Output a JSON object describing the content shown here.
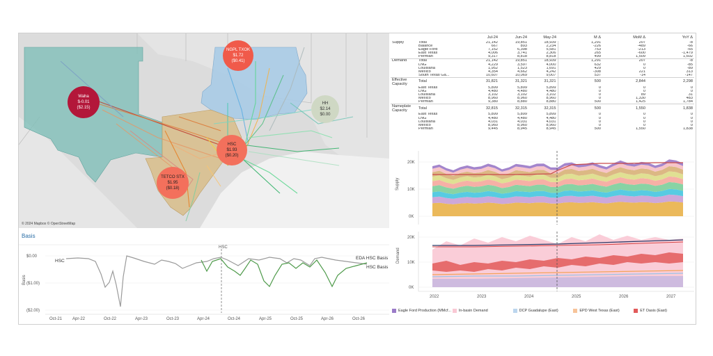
{
  "map": {
    "credit": "© 2024 Mapbox © OpenStreetMap",
    "hubs": [
      {
        "name": "NGPL TXOK",
        "price": "$1.72",
        "basis": "($0.41)",
        "color": "#f05a4a"
      },
      {
        "name": "Waha",
        "price": "$-0.01",
        "basis": "($2.15)",
        "color": "#b3173a"
      },
      {
        "name": "HH",
        "price": "$2.14",
        "basis": "$0.00",
        "color": "#cfd8c4"
      },
      {
        "name": "HSC",
        "price": "$1.93",
        "basis": "($0.20)",
        "color": "#f3705c"
      },
      {
        "name": "TETCO STX",
        "price": "$1.95",
        "basis": "($0.18)",
        "color": "#f3705c"
      }
    ]
  },
  "basis": {
    "title": "Basis",
    "marker_label": "HSC",
    "left_label": "HSC",
    "series_labels": [
      "EDA HSC Basis",
      "HSC Basis"
    ],
    "y_label": "Basis",
    "y_ticks": [
      "$0.00",
      "($1.00)",
      "($2.00)"
    ],
    "x_ticks": [
      "Oct-21",
      "Apr-22",
      "Oct-22",
      "Apr-23",
      "Oct-23",
      "Apr-24",
      "Oct-24",
      "Apr-25",
      "Oct-25",
      "Apr-26",
      "Oct-26"
    ],
    "colors": {
      "hsc": "#9a9a9a",
      "eda": "#4e9a4a"
    }
  },
  "table": {
    "headers": [
      "Jul-24",
      "Jun-24",
      "May-24",
      "M Δ",
      "MoM Δ",
      "YoY Δ"
    ],
    "groups": [
      {
        "name": "Supply",
        "rows": [
          {
            "label": "Total",
            "v": [
              "21,142",
              "19,851",
              "18,939",
              "1,291",
              "207",
              "-8"
            ]
          },
          {
            "label": "Balance",
            "v": [
              "667",
              "893",
              "2,234",
              "-226",
              "-489",
              "-66"
            ]
          },
          {
            "label": "Eagle Ford",
            "v": [
              "7,152",
              "6,398",
              "5,581",
              "753",
              "-213",
              "-65"
            ]
          },
          {
            "label": "East Texas",
            "v": [
              "4,006",
              "3,741",
              "2,306",
              "265",
              "-600",
              "-1,479"
            ]
          },
          {
            "label": "Permian",
            "v": [
              "9,317",
              "8,818",
              "8,818",
              "499",
              "1,509",
              "1,602"
            ]
          }
        ]
      },
      {
        "name": "Demand",
        "rows": [
          {
            "label": "Total",
            "v": [
              "21,142",
              "19,851",
              "18,939",
              "1,291",
              "207",
              "-8"
            ]
          },
          {
            "label": "LNG",
            "v": [
              "4,229",
              "3,597",
              "4,000",
              "632",
              "0",
              "-85"
            ]
          },
          {
            "label": "Louisiana",
            "v": [
              "1,952",
              "1,523",
              "1,691",
              "429",
              "0",
              "-89"
            ]
          },
          {
            "label": "Mexico",
            "v": [
              "4,354",
              "4,662",
              "4,242",
              "-308",
              "221",
              "313"
            ]
          },
          {
            "label": "South Texas Ga...",
            "v": [
              "10,607",
              "10,069",
              "9,007",
              "537",
              "-14",
              "-147"
            ]
          }
        ]
      },
      {
        "name": "Effective Capacity",
        "rows": [
          {
            "label": "Total",
            "v": [
              "31,821",
              "31,321",
              "31,321",
              "500",
              "2,844",
              "2,298"
            ]
          },
          {
            "label": "East Texas",
            "v": [
              "5,899",
              "5,899",
              "5,899",
              "0",
              "0",
              "0"
            ]
          },
          {
            "label": "LNG",
            "v": [
              "4,480",
              "4,480",
              "4,480",
              "0",
              "0",
              "0"
            ]
          },
          {
            "label": "Louisiana",
            "v": [
              "3,102",
              "3,102",
              "3,102",
              "0",
              "89",
              "31"
            ]
          },
          {
            "label": "Mexico",
            "v": [
              "8,960",
              "8,960",
              "8,960",
              "0",
              "1,330",
              "483"
            ]
          },
          {
            "label": "Permian",
            "v": [
              "9,380",
              "8,880",
              "8,880",
              "500",
              "1,425",
              "1,784"
            ]
          }
        ]
      },
      {
        "name": "Nameplate Capacity",
        "rows": [
          {
            "label": "Total",
            "v": [
              "32,815",
              "32,315",
              "32,315",
              "500",
              "1,550",
              "1,838"
            ]
          },
          {
            "label": "East Texas",
            "v": [
              "5,899",
              "5,899",
              "5,899",
              "0",
              "0",
              "0"
            ]
          },
          {
            "label": "LNG",
            "v": [
              "4,480",
              "4,480",
              "4,480",
              "0",
              "0",
              "0"
            ]
          },
          {
            "label": "Louisiana",
            "v": [
              "4,031",
              "4,031",
              "4,031",
              "0",
              "0",
              "0"
            ]
          },
          {
            "label": "Mexico",
            "v": [
              "8,960",
              "8,960",
              "8,960",
              "0",
              "0",
              "0"
            ]
          },
          {
            "label": "Permian",
            "v": [
              "9,445",
              "8,945",
              "8,945",
              "500",
              "1,550",
              "1,838"
            ]
          }
        ]
      }
    ]
  },
  "supply_chart": {
    "y_label": "Supply",
    "y_ticks": [
      "20K",
      "10K",
      "0K"
    ],
    "bands": [
      "#9b7bc8",
      "#f6bfc4",
      "#d9b27a",
      "#dddd8a",
      "#f5a99e",
      "#7ecf9c",
      "#49c7e0",
      "#c9a1d6",
      "#e9b34d"
    ],
    "line_color": "#c94a4a"
  },
  "demand_chart": {
    "y_label": "Demand",
    "y_ticks": [
      "20K",
      "10K",
      "0K"
    ],
    "x_ticks": [
      "2022",
      "2023",
      "2024",
      "2025",
      "2026",
      "2027"
    ],
    "colors": {
      "indemand": "#f9c8d4",
      "basis": "#e25a5a",
      "navy": "#2b3a67",
      "red": "#d64545",
      "purple": "#c9b9e0",
      "orange": "#f3a35c",
      "blue": "#9ec3e6"
    }
  },
  "legend": [
    {
      "label": "Eagle Ford Production (MMcf...",
      "color": "#9b7bc8"
    },
    {
      "label": "In-basin Demand",
      "color": "#f9c8d4"
    },
    {
      "label": "DCP Guadalupe (East)",
      "color": "#bcd6ee"
    },
    {
      "label": "EPD West Texas (East)",
      "color": "#f7c49a"
    },
    {
      "label": "ET Oasis (East)",
      "color": "#e25a5a"
    }
  ]
}
